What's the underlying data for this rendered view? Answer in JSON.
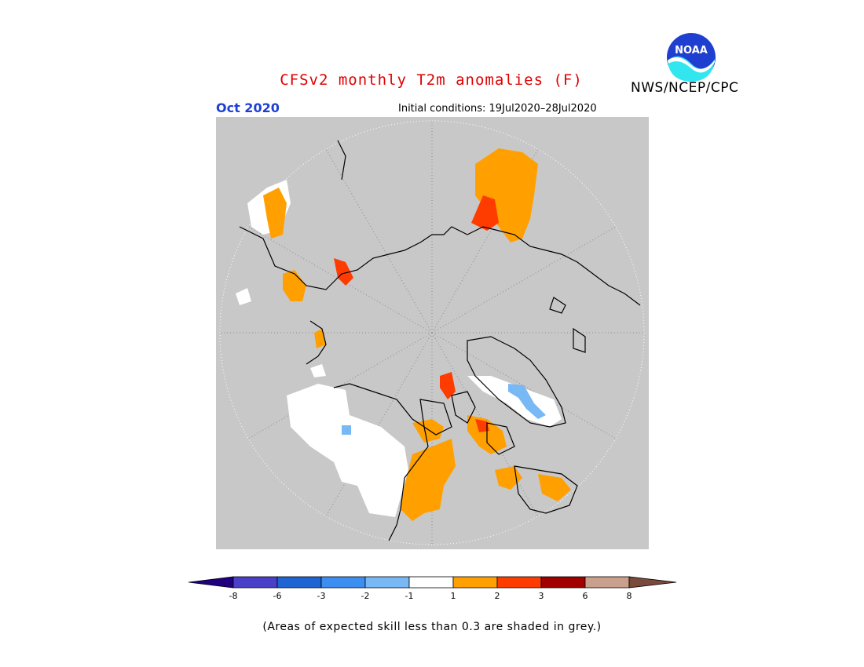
{
  "header": {
    "title": "CFSv2 monthly T2m anomalies (F)",
    "month": "Oct 2020",
    "initial_conditions": "Initial conditions: 19Jul2020–28Jul2020",
    "agency": "NWS/NCEP/CPC",
    "logo_text": "NOAA"
  },
  "colorbar": {
    "ticks": [
      "-8",
      "-6",
      "-3",
      "-2",
      "-1",
      "1",
      "2",
      "3",
      "6",
      "8"
    ],
    "colors": [
      "#200080",
      "#4a3fc8",
      "#1e64d2",
      "#3c8ff0",
      "#78b8f5",
      "#ffffff",
      "#ffa000",
      "#ff3c00",
      "#a00000",
      "#c8a08c",
      "#784b3c"
    ]
  },
  "legend_note": "(Areas of expected skill less than 0.3 are shaded in grey.)",
  "colors": {
    "grey_mask": "#c8c8c8",
    "title": "#e00000",
    "month": "#1c3fd6"
  }
}
